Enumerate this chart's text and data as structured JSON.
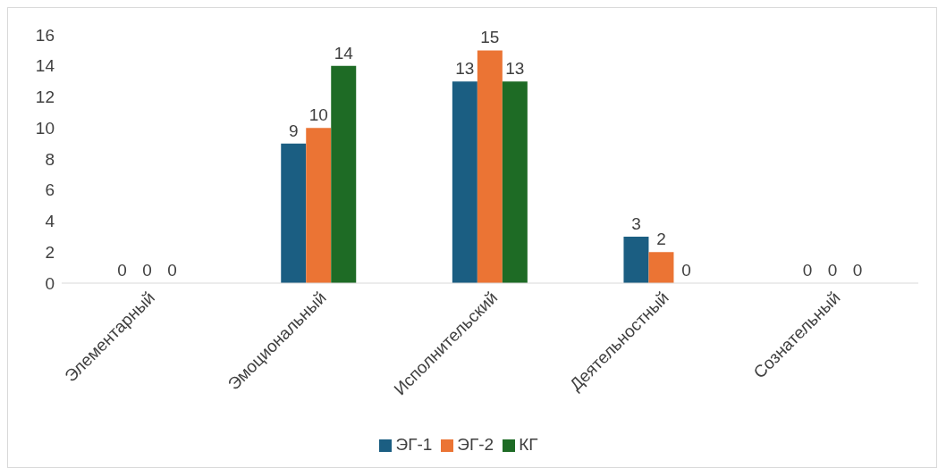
{
  "chart_data": {
    "type": "bar",
    "categories": [
      "Элементарный",
      "Эмоциональный",
      "Исполнительский",
      "Деятельностный",
      "Сознательный"
    ],
    "series": [
      {
        "name": "ЭГ-1",
        "color": "#1b5e82",
        "values": [
          0,
          9,
          13,
          3,
          0
        ]
      },
      {
        "name": "ЭГ-2",
        "color": "#eb7434",
        "values": [
          0,
          10,
          15,
          2,
          0
        ]
      },
      {
        "name": "КГ",
        "color": "#1e6b25",
        "values": [
          0,
          14,
          13,
          0,
          0
        ]
      }
    ],
    "ylim": [
      0,
      16
    ],
    "yticks": [
      0,
      2,
      4,
      6,
      8,
      10,
      12,
      14,
      16
    ],
    "grid": false,
    "legend": "bottom",
    "data_labels": true
  }
}
